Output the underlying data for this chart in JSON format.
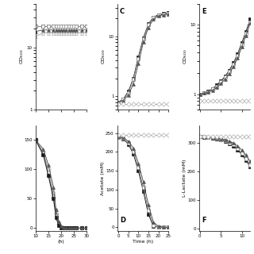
{
  "time_AB": [
    10,
    13,
    15,
    17,
    18,
    19,
    20,
    21,
    22,
    23,
    24,
    25,
    26,
    28,
    30
  ],
  "time_CD": [
    0,
    2.5,
    5,
    7.5,
    10,
    12.5,
    15,
    17.5,
    20,
    22.5,
    25
  ],
  "time_EF": [
    0,
    1,
    2,
    3,
    4,
    5,
    6,
    7,
    8,
    9,
    10,
    11,
    12
  ],
  "A_solid_sq": [
    22,
    22,
    22,
    22,
    22,
    22,
    22,
    22,
    22,
    22,
    22,
    22,
    22,
    22,
    22
  ],
  "A_open_sq": [
    22,
    22,
    22,
    22,
    22,
    22,
    22,
    22,
    22,
    22,
    22,
    22,
    22,
    22,
    22
  ],
  "A_solid_tri": [
    18,
    19,
    19,
    19,
    19,
    19,
    19,
    19,
    19,
    19,
    19,
    19,
    19,
    19,
    19
  ],
  "A_open_tri": [
    15,
    17,
    17,
    17,
    17,
    17,
    17,
    17,
    17,
    17,
    17,
    17,
    17,
    17,
    17
  ],
  "B_open_diam": [
    150,
    130,
    100,
    60,
    25,
    8,
    2,
    0.5,
    0.3,
    0.2,
    0.1,
    0.1,
    0.1,
    0.1,
    0.1
  ],
  "B_solid_sq": [
    150,
    125,
    90,
    50,
    18,
    5,
    1.2,
    0.4,
    0.2,
    0.1,
    0.05,
    0.05,
    0.05,
    0.05,
    0.05
  ],
  "B_open_sq": [
    150,
    128,
    95,
    55,
    22,
    7,
    1.8,
    0.5,
    0.25,
    0.12,
    0.06,
    0.06,
    0.06,
    0.06,
    0.06
  ],
  "B_solid_tri": [
    150,
    135,
    108,
    70,
    32,
    12,
    3,
    0.8,
    0.3,
    0.15,
    0.08,
    0.08,
    0.08,
    0.08,
    0.08
  ],
  "C_solid_sq": [
    0.8,
    0.9,
    1.2,
    2.0,
    4.5,
    9.5,
    16.0,
    21.0,
    23.0,
    24.0,
    24.5
  ],
  "C_open_sq": [
    0.8,
    0.88,
    1.15,
    1.9,
    4.2,
    9.0,
    15.5,
    20.5,
    22.5,
    23.5,
    24.0
  ],
  "C_solid_tri": [
    0.8,
    0.85,
    1.05,
    1.6,
    3.5,
    8.0,
    14.0,
    19.5,
    22.0,
    23.0,
    23.5
  ],
  "C_open_diam": [
    0.75,
    0.75,
    0.75,
    0.75,
    0.75,
    0.75,
    0.75,
    0.75,
    0.75,
    0.75,
    0.75
  ],
  "D_solid_sq": [
    238,
    235,
    220,
    195,
    150,
    95,
    35,
    3,
    0.5,
    0.2,
    0.1
  ],
  "D_open_sq": [
    238,
    236,
    223,
    200,
    158,
    105,
    45,
    6,
    1,
    0.3,
    0.1
  ],
  "D_solid_tri": [
    240,
    238,
    228,
    210,
    170,
    120,
    60,
    14,
    3,
    0.5,
    0.1
  ],
  "D_open_diam": [
    245,
    245,
    245,
    245,
    245,
    245,
    245,
    245,
    245,
    245,
    245
  ],
  "E_solid_sq": [
    1.0,
    1.05,
    1.1,
    1.2,
    1.35,
    1.55,
    1.8,
    2.2,
    2.8,
    3.8,
    5.5,
    8.0,
    12.0
  ],
  "E_open_sq": [
    1.0,
    1.04,
    1.08,
    1.18,
    1.3,
    1.5,
    1.75,
    2.1,
    2.7,
    3.6,
    5.2,
    7.5,
    11.0
  ],
  "E_solid_tri": [
    1.0,
    1.03,
    1.06,
    1.14,
    1.25,
    1.42,
    1.65,
    1.95,
    2.5,
    3.3,
    4.8,
    7.0,
    10.5
  ],
  "E_open_diam": [
    0.8,
    0.8,
    0.8,
    0.8,
    0.8,
    0.8,
    0.8,
    0.8,
    0.8,
    0.8,
    0.8,
    0.8,
    0.8
  ],
  "F_solid_sq": [
    320,
    319,
    318,
    316,
    313,
    309,
    304,
    297,
    288,
    275,
    258,
    238,
    215
  ],
  "F_open_sq": [
    320,
    320,
    319,
    317,
    315,
    311,
    307,
    300,
    292,
    280,
    264,
    244,
    220
  ],
  "F_solid_tri": [
    320,
    320,
    320,
    319,
    317,
    314,
    310,
    305,
    298,
    288,
    274,
    256,
    234
  ],
  "F_open_diam": [
    320,
    320,
    320,
    320,
    320,
    320,
    320,
    320,
    320,
    320,
    320,
    320,
    320
  ],
  "colors": {
    "solid_sq": "#1a1a1a",
    "open_sq": "#888888",
    "solid_tri": "#555555",
    "open_diam": "#aaaaaa"
  }
}
